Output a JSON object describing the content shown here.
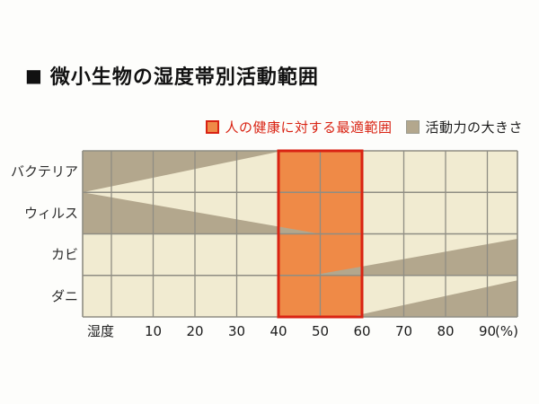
{
  "title": {
    "marker": "■",
    "text": "微小生物の湿度帯別活動範囲"
  },
  "legend": {
    "optimal": {
      "label": "人の健康に対する最適範囲",
      "swatch_fill": "#ef8a47",
      "swatch_border": "#d92313",
      "text_color": "#d92313"
    },
    "activity": {
      "label": "活動力の大きさ",
      "swatch_fill": "#b3a78d",
      "text_color": "#1c1c1c"
    }
  },
  "chart_data": {
    "type": "area",
    "title": "微小生物の湿度帯別活動範囲",
    "rows": [
      "バクテリア",
      "ウィルス",
      "カビ",
      "ダニ"
    ],
    "x_axis": {
      "label": "湿度",
      "unit": "(%)",
      "tick_values": [
        10,
        20,
        30,
        40,
        50,
        60,
        70,
        80,
        90
      ],
      "tick_labels": [
        "10",
        "20",
        "30",
        "40",
        "50",
        "60",
        "70",
        "80",
        "90"
      ],
      "gridline_pcts": [
        0,
        10,
        20,
        30,
        40,
        50,
        60,
        70,
        80,
        90
      ],
      "range_pct": [
        -6.9,
        97.2
      ]
    },
    "optimal_range_pct": [
      40,
      60
    ],
    "optimal_range_label": "人の健康に対する最適範囲",
    "activity_label": "活動力の大きさ",
    "wedges": [
      {
        "organism": "バクテリア",
        "from_pct": -6.9,
        "to_pct": 41,
        "anchor": "top",
        "from_height": 1.0,
        "to_height": 0.0
      },
      {
        "organism": "ウィルス",
        "from_pct": -6.9,
        "to_pct": 50,
        "anchor": "bottom",
        "from_height": 1.0,
        "to_height": 0.0
      },
      {
        "organism": "カビ",
        "from_pct": 48,
        "to_pct": 97.2,
        "anchor": "bottom",
        "from_height": 0.0,
        "to_height": 0.88
      },
      {
        "organism": "ダニ",
        "from_pct": 57,
        "to_pct": 97.2,
        "anchor": "bottom",
        "from_height": 0.0,
        "to_height": 0.88
      }
    ],
    "colors": {
      "plot_bg": "#f1ebd1",
      "wedge": "#b3a78d",
      "grid": "#8f8d83",
      "optimal_fill": "#ef8a47",
      "optimal_border": "#d92313"
    },
    "legend_position": "top-right",
    "grid": true
  }
}
